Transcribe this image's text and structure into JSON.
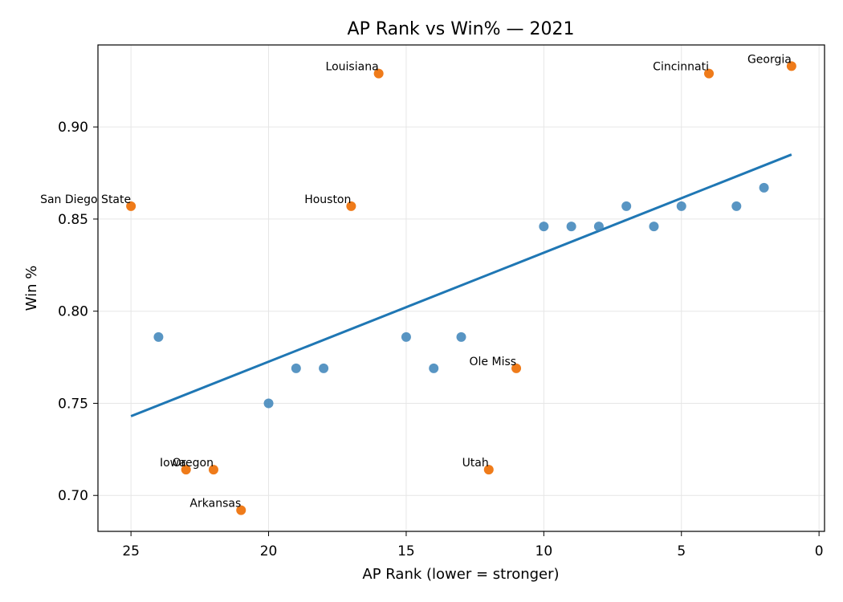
{
  "chart_data": {
    "type": "scatter",
    "title": "AP Rank vs Win% — 2021",
    "xlabel": "AP Rank (lower = stronger)",
    "ylabel": "Win %",
    "xlim": [
      26.2,
      -0.2
    ],
    "ylim": [
      0.6805,
      0.9445
    ],
    "x_reversed": true,
    "xticks": [
      25,
      20,
      15,
      10,
      5,
      0
    ],
    "yticks": [
      0.7,
      0.75,
      0.8,
      0.85,
      0.9
    ],
    "ytick_labels": [
      "0.70",
      "0.75",
      "0.80",
      "0.85",
      "0.90"
    ],
    "grid": true,
    "colors": {
      "regular": "#3b82b9",
      "highlight": "#ef7b1a",
      "trend": "#1f77b4"
    },
    "series": [
      {
        "points": [
          {
            "x": 24,
            "y": 0.786
          },
          {
            "x": 20,
            "y": 0.75
          },
          {
            "x": 19,
            "y": 0.769
          },
          {
            "x": 18,
            "y": 0.769
          },
          {
            "x": 15,
            "y": 0.786
          },
          {
            "x": 14,
            "y": 0.769
          },
          {
            "x": 13,
            "y": 0.786
          },
          {
            "x": 10,
            "y": 0.846
          },
          {
            "x": 9,
            "y": 0.846
          },
          {
            "x": 8,
            "y": 0.846
          },
          {
            "x": 7,
            "y": 0.857
          },
          {
            "x": 6,
            "y": 0.846
          },
          {
            "x": 5,
            "y": 0.857
          },
          {
            "x": 3,
            "y": 0.857
          },
          {
            "x": 2,
            "y": 0.867
          }
        ]
      },
      {
        "points": [
          {
            "x": 25,
            "y": 0.857,
            "label": "San Diego State"
          },
          {
            "x": 23,
            "y": 0.714,
            "label": "Iowa"
          },
          {
            "x": 22,
            "y": 0.714,
            "label": "Oregon"
          },
          {
            "x": 21,
            "y": 0.692,
            "label": "Arkansas"
          },
          {
            "x": 17,
            "y": 0.857,
            "label": "Houston"
          },
          {
            "x": 16,
            "y": 0.929,
            "label": "Louisiana"
          },
          {
            "x": 12,
            "y": 0.714,
            "label": "Utah"
          },
          {
            "x": 11,
            "y": 0.769,
            "label": "Ole Miss"
          },
          {
            "x": 4,
            "y": 0.929,
            "label": "Cincinnati"
          },
          {
            "x": 1,
            "y": 0.933,
            "label": "Georgia"
          }
        ]
      }
    ],
    "trendline": {
      "x": [
        25,
        1
      ],
      "y": [
        0.743,
        0.885
      ]
    }
  }
}
